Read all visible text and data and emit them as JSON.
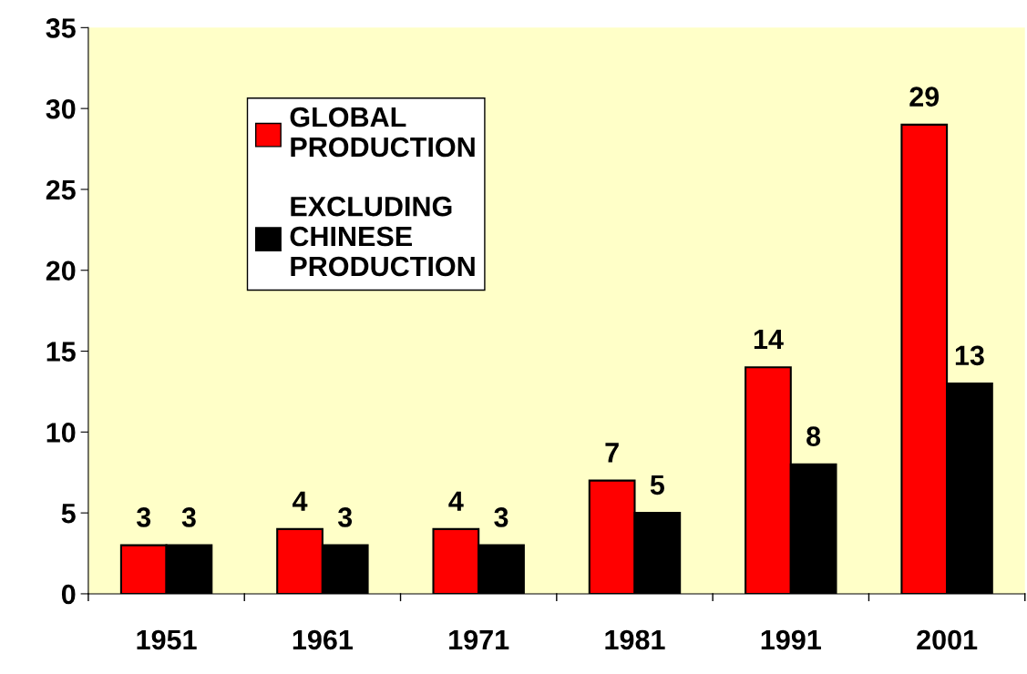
{
  "chart_data": {
    "type": "bar",
    "categories": [
      "1951",
      "1961",
      "1971",
      "1981",
      "1991",
      "2001"
    ],
    "series": [
      {
        "name": "GLOBAL\nPRODUCTION",
        "color": "#ff0000",
        "values": [
          3,
          4,
          4,
          7,
          14,
          29
        ]
      },
      {
        "name": "EXCLUDING\nCHINESE\nPRODUCTION",
        "color": "#000000",
        "values": [
          3,
          3,
          3,
          5,
          8,
          13
        ]
      }
    ],
    "ylim": [
      0,
      35
    ],
    "yticks": [
      0,
      5,
      10,
      15,
      20,
      25,
      30,
      35
    ],
    "data_labels": true,
    "grid": false,
    "legend": "top left"
  }
}
